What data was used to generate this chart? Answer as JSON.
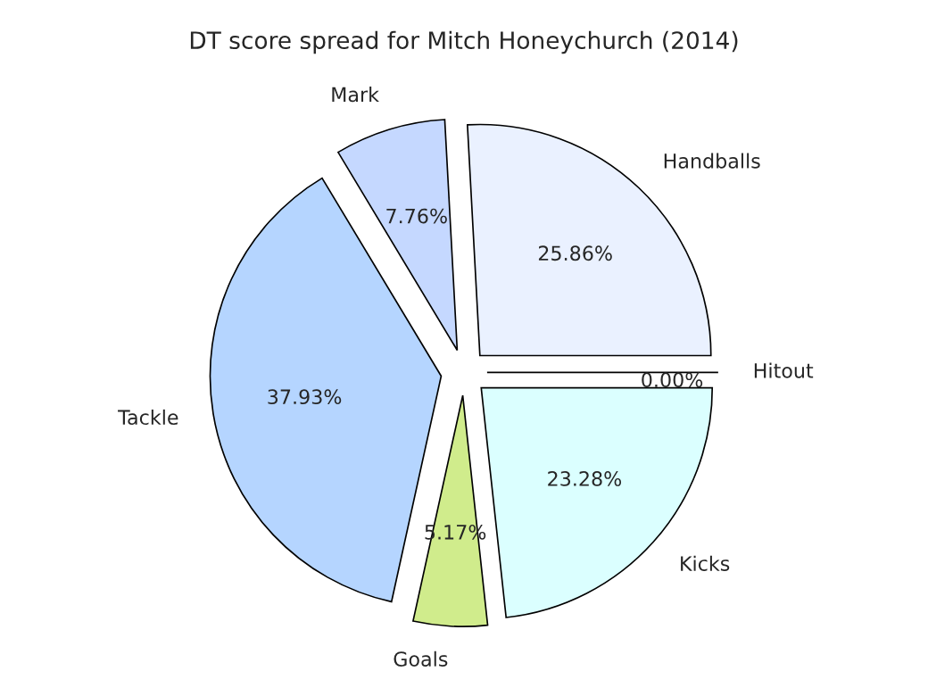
{
  "chart_data": {
    "type": "pie",
    "title": "DT score spread for Mitch Honeychurch (2014)",
    "categories": [
      "Hitout",
      "Handballs",
      "Mark",
      "Tackle",
      "Goals",
      "Kicks"
    ],
    "values": [
      0.0,
      25.86,
      7.76,
      37.93,
      5.17,
      23.28
    ],
    "value_labels": [
      "0.00%",
      "25.86%",
      "7.76%",
      "37.93%",
      "5.17%",
      "23.28%"
    ],
    "colors": [
      "#ffffff",
      "#eaf1ff",
      "#c5d8ff",
      "#b5d5ff",
      "#d0ec8c",
      "#dbffff"
    ],
    "legend": false
  }
}
